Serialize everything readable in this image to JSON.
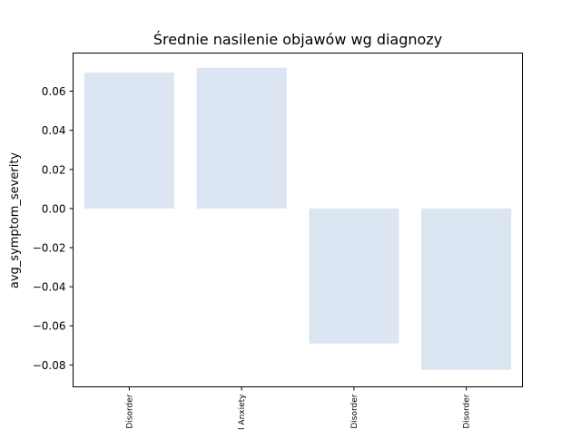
{
  "chart_data": {
    "type": "bar",
    "title": "Średnie nasilenie objawów wg diagnozy",
    "xlabel": "",
    "ylabel": "avg_symptom_severity",
    "categories": [
      "Disorder",
      "l Anxiety",
      "Disorder",
      "Disorder"
    ],
    "values": [
      0.0695,
      0.072,
      -0.069,
      -0.0825
    ],
    "ylim": [
      -0.0912,
      0.0795
    ],
    "yticks": [
      0.06,
      0.04,
      0.02,
      0.0,
      -0.02,
      -0.04,
      -0.06,
      -0.08
    ],
    "ytick_labels": [
      "0.06",
      "0.04",
      "0.02",
      "0.00",
      "−0.02",
      "−0.04",
      "−0.06",
      "−0.08"
    ],
    "bar_color": "#dce6f2",
    "grid": false,
    "legend": "none"
  }
}
